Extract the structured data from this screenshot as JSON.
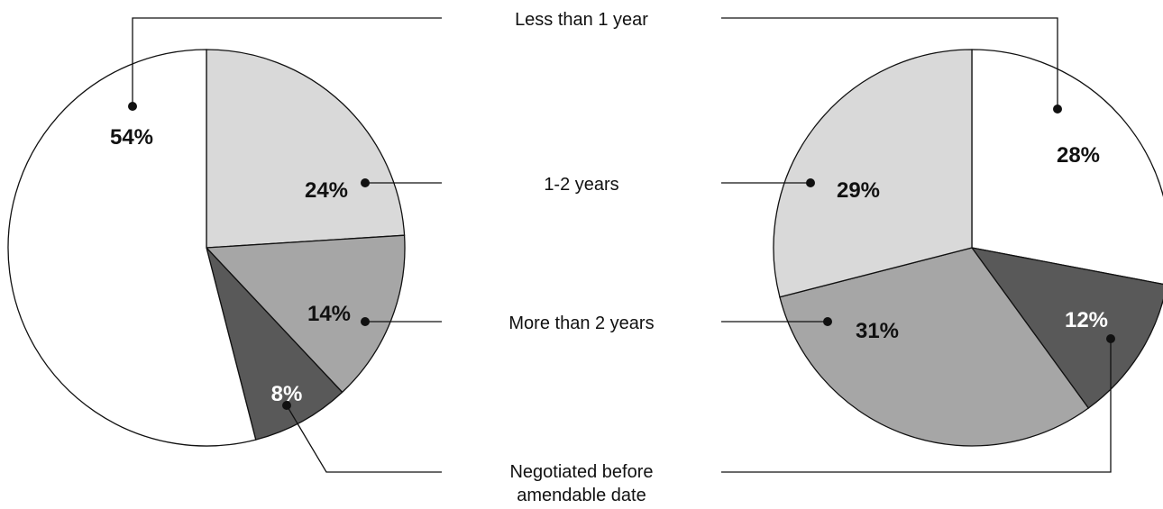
{
  "chart_data": [
    {
      "type": "pie",
      "categories": [
        "Less than 1 year",
        "1-2 years",
        "More than 2 years",
        "Negotiated before amendable date"
      ],
      "values": [
        54,
        24,
        14,
        8
      ],
      "labels": [
        "54%",
        "24%",
        "14%",
        "8%"
      ],
      "colors": [
        "#ffffff",
        "#d9d9d9",
        "#a6a6a6",
        "#595959"
      ],
      "label_colors": [
        "#111111",
        "#111111",
        "#111111",
        "#ffffff"
      ]
    },
    {
      "type": "pie",
      "categories": [
        "Less than 1 year",
        "1-2 years",
        "More than 2 years",
        "Negotiated before amendable date"
      ],
      "values": [
        28,
        29,
        31,
        12
      ],
      "labels": [
        "28%",
        "29%",
        "31%",
        "12%"
      ],
      "colors": [
        "#ffffff",
        "#d9d9d9",
        "#a6a6a6",
        "#595959"
      ],
      "label_colors": [
        "#111111",
        "#111111",
        "#111111",
        "#ffffff"
      ]
    }
  ],
  "legend": {
    "items": [
      "Less than 1 year",
      "1-2 years",
      "More than 2 years"
    ],
    "negotiated_line1": "Negotiated before",
    "negotiated_line2": "amendable date"
  }
}
